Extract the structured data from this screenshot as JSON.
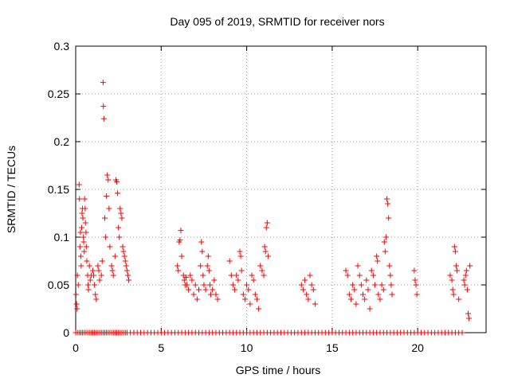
{
  "chart_data": {
    "type": "scatter",
    "title": "Day 095 of 2019, SRMTID for receiver nors",
    "xlabel": "GPS time / hours",
    "ylabel": "SRMTID / TECUs",
    "xlim": [
      0,
      24
    ],
    "ylim": [
      0,
      0.3
    ],
    "xticks": [
      0,
      5,
      10,
      15,
      20
    ],
    "xtick_labels": [
      "0",
      "5",
      "10",
      "15",
      "20"
    ],
    "yticks": [
      0,
      0.05,
      0.1,
      0.15,
      0.2,
      0.25,
      0.3
    ],
    "ytick_labels": [
      "0",
      "0.05",
      "0.1",
      "0.15",
      "0.2",
      "0.25",
      "0.3"
    ],
    "grid": true,
    "marker": "+",
    "color": "#ff0000",
    "series": [
      {
        "name": "SRMTID",
        "points": [
          [
            0.02,
            0.04
          ],
          [
            0.05,
            0.03
          ],
          [
            0.08,
            0.025
          ],
          [
            0.1,
            0.06
          ],
          [
            0.15,
            0.05
          ],
          [
            0.2,
            0.155
          ],
          [
            0.22,
            0.14
          ],
          [
            0.25,
            0.09
          ],
          [
            0.28,
            0.105
          ],
          [
            0.3,
            0.08
          ],
          [
            0.32,
            0.07
          ],
          [
            0.35,
            0.11
          ],
          [
            0.37,
            0.125
          ],
          [
            0.4,
            0.13
          ],
          [
            0.42,
            0.12
          ],
          [
            0.45,
            0.1
          ],
          [
            0.47,
            0.095
          ],
          [
            0.5,
            0.085
          ],
          [
            0.52,
            0.14
          ],
          [
            0.55,
            0.13
          ],
          [
            0.57,
            0.115
          ],
          [
            0.6,
            0.105
          ],
          [
            0.62,
            0.09
          ],
          [
            0.65,
            0.075
          ],
          [
            0.7,
            0.06
          ],
          [
            0.72,
            0.05
          ],
          [
            0.75,
            0.045
          ],
          [
            0.8,
            0.07
          ],
          [
            0.85,
            0.055
          ],
          [
            0.9,
            0.06
          ],
          [
            1.0,
            0.065
          ],
          [
            1.05,
            0.06
          ],
          [
            1.1,
            0.05
          ],
          [
            1.15,
            0.04
          ],
          [
            1.2,
            0.035
          ],
          [
            1.3,
            0.07
          ],
          [
            1.35,
            0.065
          ],
          [
            1.4,
            0.055
          ],
          [
            1.5,
            0.06
          ],
          [
            1.55,
            0.075
          ],
          [
            1.6,
            0.262
          ],
          [
            1.62,
            0.237
          ],
          [
            1.65,
            0.224
          ],
          [
            1.7,
            0.12
          ],
          [
            1.75,
            0.1
          ],
          [
            1.8,
            0.143
          ],
          [
            1.85,
            0.165
          ],
          [
            1.9,
            0.16
          ],
          [
            1.95,
            0.13
          ],
          [
            2.0,
            0.09
          ],
          [
            2.1,
            0.07
          ],
          [
            2.15,
            0.065
          ],
          [
            2.2,
            0.06
          ],
          [
            2.3,
            0.08
          ],
          [
            2.35,
            0.16
          ],
          [
            2.4,
            0.158
          ],
          [
            2.45,
            0.146
          ],
          [
            2.5,
            0.11
          ],
          [
            2.55,
            0.1
          ],
          [
            2.6,
            0.13
          ],
          [
            2.65,
            0.125
          ],
          [
            2.7,
            0.12
          ],
          [
            2.75,
            0.09
          ],
          [
            2.8,
            0.085
          ],
          [
            2.85,
            0.08
          ],
          [
            2.9,
            0.075
          ],
          [
            2.95,
            0.07
          ],
          [
            3.0,
            0.065
          ],
          [
            3.05,
            0.06
          ],
          [
            3.1,
            0.055
          ],
          [
            5.95,
            0.07
          ],
          [
            6.0,
            0.065
          ],
          [
            6.05,
            0.095
          ],
          [
            6.1,
            0.097
          ],
          [
            6.15,
            0.107
          ],
          [
            6.2,
            0.08
          ],
          [
            6.3,
            0.06
          ],
          [
            6.35,
            0.055
          ],
          [
            6.4,
            0.05
          ],
          [
            6.45,
            0.058
          ],
          [
            6.5,
            0.05
          ],
          [
            6.6,
            0.045
          ],
          [
            6.7,
            0.06
          ],
          [
            6.8,
            0.055
          ],
          [
            6.9,
            0.04
          ],
          [
            7.0,
            0.05
          ],
          [
            7.1,
            0.035
          ],
          [
            7.2,
            0.045
          ],
          [
            7.3,
            0.07
          ],
          [
            7.35,
            0.095
          ],
          [
            7.4,
            0.085
          ],
          [
            7.45,
            0.06
          ],
          [
            7.5,
            0.05
          ],
          [
            7.6,
            0.045
          ],
          [
            7.7,
            0.07
          ],
          [
            7.75,
            0.08
          ],
          [
            7.8,
            0.065
          ],
          [
            7.85,
            0.05
          ],
          [
            7.9,
            0.04
          ],
          [
            8.0,
            0.045
          ],
          [
            8.1,
            0.055
          ],
          [
            8.2,
            0.04
          ],
          [
            8.3,
            0.035
          ],
          [
            9.0,
            0.075
          ],
          [
            9.1,
            0.06
          ],
          [
            9.2,
            0.05
          ],
          [
            9.3,
            0.045
          ],
          [
            9.4,
            0.06
          ],
          [
            9.5,
            0.055
          ],
          [
            9.6,
            0.085
          ],
          [
            9.65,
            0.08
          ],
          [
            9.7,
            0.065
          ],
          [
            9.8,
            0.04
          ],
          [
            9.9,
            0.035
          ],
          [
            10.0,
            0.05
          ],
          [
            10.1,
            0.045
          ],
          [
            10.2,
            0.03
          ],
          [
            10.3,
            0.06
          ],
          [
            10.4,
            0.055
          ],
          [
            10.5,
            0.04
          ],
          [
            10.6,
            0.035
          ],
          [
            10.7,
            0.025
          ],
          [
            10.8,
            0.07
          ],
          [
            10.9,
            0.065
          ],
          [
            11.0,
            0.06
          ],
          [
            11.05,
            0.09
          ],
          [
            11.1,
            0.085
          ],
          [
            11.15,
            0.11
          ],
          [
            11.2,
            0.115
          ],
          [
            11.25,
            0.08
          ],
          [
            13.2,
            0.05
          ],
          [
            13.3,
            0.045
          ],
          [
            13.4,
            0.055
          ],
          [
            13.5,
            0.04
          ],
          [
            13.6,
            0.035
          ],
          [
            13.7,
            0.06
          ],
          [
            13.8,
            0.05
          ],
          [
            13.9,
            0.045
          ],
          [
            14.0,
            0.03
          ],
          [
            15.8,
            0.065
          ],
          [
            15.9,
            0.06
          ],
          [
            16.0,
            0.04
          ],
          [
            16.1,
            0.035
          ],
          [
            16.2,
            0.05
          ],
          [
            16.3,
            0.045
          ],
          [
            16.4,
            0.03
          ],
          [
            16.5,
            0.07
          ],
          [
            16.6,
            0.06
          ],
          [
            16.7,
            0.05
          ],
          [
            16.8,
            0.04
          ],
          [
            16.9,
            0.035
          ],
          [
            17.0,
            0.055
          ],
          [
            17.1,
            0.045
          ],
          [
            17.2,
            0.025
          ],
          [
            17.3,
            0.065
          ],
          [
            17.4,
            0.06
          ],
          [
            17.5,
            0.05
          ],
          [
            17.6,
            0.08
          ],
          [
            17.65,
            0.075
          ],
          [
            17.7,
            0.04
          ],
          [
            17.8,
            0.035
          ],
          [
            17.9,
            0.05
          ],
          [
            18.0,
            0.045
          ],
          [
            18.05,
            0.095
          ],
          [
            18.1,
            0.085
          ],
          [
            18.15,
            0.1
          ],
          [
            18.2,
            0.14
          ],
          [
            18.25,
            0.135
          ],
          [
            18.3,
            0.12
          ],
          [
            18.35,
            0.07
          ],
          [
            18.4,
            0.06
          ],
          [
            18.45,
            0.05
          ],
          [
            18.5,
            0.04
          ],
          [
            19.8,
            0.065
          ],
          [
            19.85,
            0.055
          ],
          [
            19.9,
            0.05
          ],
          [
            19.95,
            0.04
          ],
          [
            21.9,
            0.06
          ],
          [
            22.0,
            0.055
          ],
          [
            22.05,
            0.045
          ],
          [
            22.1,
            0.04
          ],
          [
            22.15,
            0.09
          ],
          [
            22.2,
            0.085
          ],
          [
            22.25,
            0.07
          ],
          [
            22.3,
            0.065
          ],
          [
            22.4,
            0.035
          ],
          [
            22.7,
            0.055
          ],
          [
            22.75,
            0.05
          ],
          [
            22.8,
            0.06
          ],
          [
            22.85,
            0.065
          ],
          [
            22.9,
            0.045
          ],
          [
            22.95,
            0.02
          ],
          [
            23.0,
            0.015
          ],
          [
            23.05,
            0.07
          ]
        ]
      }
    ],
    "zero_baseline_points": [
      [
        0.0,
        0
      ],
      [
        0.1,
        0
      ],
      [
        0.2,
        0
      ],
      [
        0.3,
        0
      ],
      [
        0.4,
        0
      ],
      [
        0.5,
        0
      ],
      [
        0.6,
        0
      ],
      [
        0.7,
        0
      ],
      [
        0.8,
        0
      ],
      [
        0.9,
        0
      ],
      [
        1.0,
        0
      ],
      [
        1.1,
        0
      ],
      [
        1.2,
        0
      ],
      [
        1.3,
        0
      ],
      [
        1.4,
        0
      ],
      [
        1.5,
        0
      ],
      [
        1.6,
        0
      ],
      [
        1.7,
        0
      ],
      [
        1.8,
        0
      ],
      [
        1.9,
        0
      ],
      [
        2.0,
        0
      ],
      [
        2.1,
        0
      ],
      [
        2.2,
        0
      ],
      [
        2.3,
        0
      ],
      [
        2.4,
        0
      ],
      [
        2.5,
        0
      ],
      [
        2.6,
        0
      ],
      [
        2.7,
        0
      ],
      [
        2.8,
        0
      ],
      [
        2.9,
        0
      ],
      [
        3.0,
        0
      ],
      [
        3.2,
        0
      ],
      [
        3.4,
        0
      ],
      [
        3.6,
        0
      ],
      [
        3.8,
        0
      ],
      [
        4.0,
        0
      ],
      [
        4.2,
        0
      ],
      [
        4.4,
        0
      ],
      [
        4.6,
        0
      ],
      [
        4.8,
        0
      ],
      [
        5.0,
        0
      ],
      [
        5.2,
        0
      ],
      [
        5.4,
        0
      ],
      [
        5.6,
        0
      ],
      [
        5.8,
        0
      ],
      [
        6.0,
        0
      ],
      [
        6.2,
        0
      ],
      [
        6.4,
        0
      ],
      [
        6.6,
        0
      ],
      [
        6.8,
        0
      ],
      [
        7.0,
        0
      ],
      [
        7.2,
        0
      ],
      [
        7.4,
        0
      ],
      [
        7.6,
        0
      ],
      [
        7.8,
        0
      ],
      [
        8.0,
        0
      ],
      [
        8.2,
        0
      ],
      [
        8.4,
        0
      ],
      [
        8.6,
        0
      ],
      [
        8.8,
        0
      ],
      [
        9.0,
        0
      ],
      [
        9.2,
        0
      ],
      [
        9.4,
        0
      ],
      [
        9.6,
        0
      ],
      [
        9.8,
        0
      ],
      [
        10.0,
        0
      ],
      [
        10.2,
        0
      ],
      [
        10.4,
        0
      ],
      [
        10.6,
        0
      ],
      [
        10.8,
        0
      ],
      [
        11.0,
        0
      ],
      [
        11.2,
        0
      ],
      [
        11.4,
        0
      ],
      [
        11.6,
        0
      ],
      [
        11.8,
        0
      ],
      [
        12.0,
        0
      ],
      [
        12.2,
        0
      ],
      [
        12.4,
        0
      ],
      [
        12.6,
        0
      ],
      [
        12.8,
        0
      ],
      [
        13.0,
        0
      ],
      [
        13.2,
        0
      ],
      [
        13.4,
        0
      ],
      [
        13.6,
        0
      ],
      [
        13.8,
        0
      ],
      [
        14.0,
        0
      ],
      [
        14.2,
        0
      ],
      [
        14.4,
        0
      ],
      [
        14.6,
        0
      ],
      [
        14.8,
        0
      ],
      [
        15.0,
        0
      ],
      [
        15.2,
        0
      ],
      [
        15.4,
        0
      ],
      [
        15.6,
        0
      ],
      [
        15.8,
        0
      ],
      [
        16.0,
        0
      ],
      [
        16.2,
        0
      ],
      [
        16.4,
        0
      ],
      [
        16.6,
        0
      ],
      [
        16.8,
        0
      ],
      [
        17.0,
        0
      ],
      [
        17.2,
        0
      ],
      [
        17.4,
        0
      ],
      [
        17.6,
        0
      ],
      [
        17.8,
        0
      ],
      [
        18.0,
        0
      ],
      [
        18.2,
        0
      ],
      [
        18.4,
        0
      ],
      [
        18.6,
        0
      ],
      [
        18.8,
        0
      ],
      [
        19.0,
        0
      ],
      [
        19.2,
        0
      ],
      [
        19.4,
        0
      ],
      [
        19.6,
        0
      ],
      [
        19.8,
        0
      ],
      [
        20.0,
        0
      ],
      [
        20.2,
        0
      ],
      [
        20.4,
        0
      ],
      [
        20.6,
        0
      ],
      [
        20.8,
        0
      ],
      [
        21.0,
        0
      ],
      [
        21.2,
        0
      ],
      [
        21.4,
        0
      ],
      [
        21.6,
        0
      ],
      [
        21.8,
        0
      ],
      [
        22.0,
        0
      ],
      [
        22.2,
        0
      ],
      [
        22.4,
        0
      ],
      [
        22.6,
        0
      ]
    ]
  }
}
